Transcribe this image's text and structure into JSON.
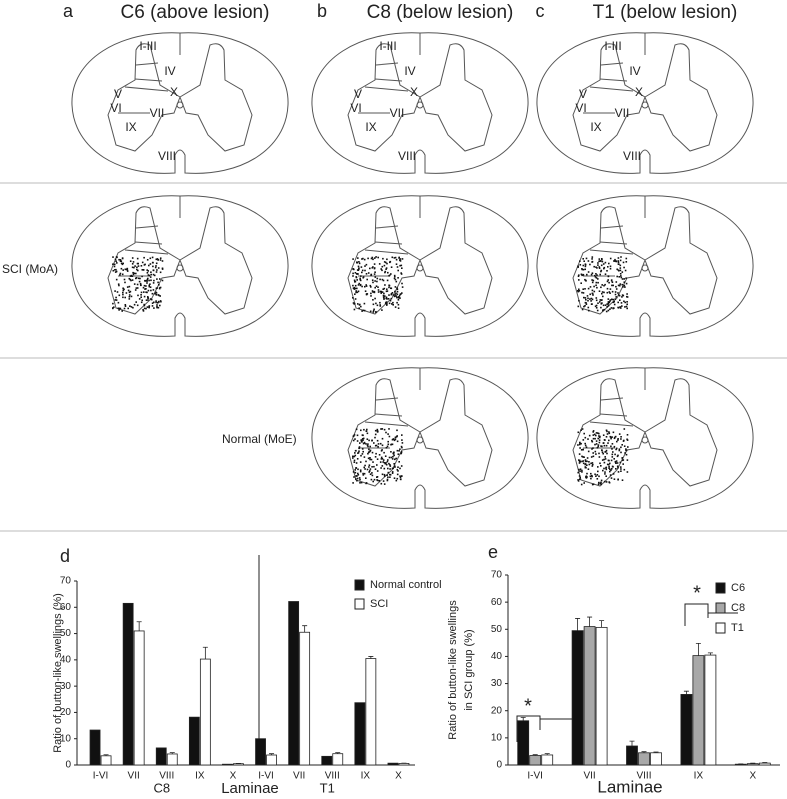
{
  "figure": {
    "panels": [
      {
        "letter": "a",
        "title": "C6 (above lesion)",
        "laminae": [
          "I-III",
          "IV",
          "V",
          "VI",
          "VII",
          "X",
          "IX",
          "VIII"
        ]
      },
      {
        "letter": "b",
        "title": "C8 (below lesion)",
        "laminae": [
          "I-III",
          "IV",
          "V",
          "VI",
          "VII",
          "X",
          "IX",
          "VIII"
        ]
      },
      {
        "letter": "c",
        "title": "T1 (below lesion)",
        "laminae": [
          "I-III",
          "IV",
          "V",
          "VI",
          "VII",
          "X",
          "IX",
          "VIII"
        ]
      }
    ],
    "row_labels": [
      "SCI (MoA)",
      "Normal (MoE)"
    ]
  },
  "chart_data": [
    {
      "type": "grouped_bar",
      "letter": "d",
      "ylabel": "Ratio of button-like swellings (%)",
      "xlabel": "Laminae",
      "categories": [
        "I-VI",
        "VII",
        "VIII",
        "IX",
        "X",
        "I-VI",
        "VII",
        "VIII",
        "IX",
        "X"
      ],
      "group_labels": [
        "C8",
        "T1"
      ],
      "series": [
        {
          "name": "Normal control",
          "color": "#111111",
          "values": [
            13.3,
            61.5,
            6.5,
            18.2,
            0.3,
            10,
            62.2,
            3.3,
            23.7,
            0.7
          ]
        },
        {
          "name": "SCI",
          "color": "#ffffff",
          "values": [
            3.5,
            51,
            4.2,
            40.3,
            0.5,
            3.8,
            50.5,
            4.3,
            40.5,
            0.6
          ],
          "errors": [
            0.4,
            3.5,
            0.5,
            4.5,
            0.1,
            0.5,
            2.5,
            0.4,
            0.8,
            0.1
          ]
        }
      ],
      "ylim": [
        0,
        70
      ],
      "yticks": [
        0,
        10,
        20,
        30,
        40,
        50,
        60,
        70
      ]
    },
    {
      "type": "grouped_bar",
      "letter": "e",
      "ylabel_lines": [
        "Ratio of button-like swellings",
        "in SCI group (%)"
      ],
      "xlabel": "Laminae",
      "categories": [
        "I-VI",
        "VII",
        "VIII",
        "IX",
        "X"
      ],
      "series": [
        {
          "name": "C6",
          "color": "#111111",
          "values": [
            16.3,
            49.5,
            7,
            26,
            0.3
          ],
          "errors": [
            1.2,
            4.5,
            1.8,
            1.2,
            0.1
          ]
        },
        {
          "name": "C8",
          "color": "#a8a8a8",
          "values": [
            3.5,
            51,
            4.5,
            40.3,
            0.5
          ],
          "errors": [
            0.3,
            3.5,
            0.4,
            4.5,
            0.2
          ]
        },
        {
          "name": "T1",
          "color": "#ffffff",
          "values": [
            3.7,
            50.7,
            4.5,
            40.5,
            0.7
          ],
          "errors": [
            0.5,
            2.5,
            0.3,
            0.8,
            0.2
          ]
        }
      ],
      "annotations": [
        "*",
        "*"
      ],
      "ylim": [
        0,
        70
      ],
      "yticks": [
        0,
        10,
        20,
        30,
        40,
        50,
        60,
        70
      ]
    }
  ]
}
